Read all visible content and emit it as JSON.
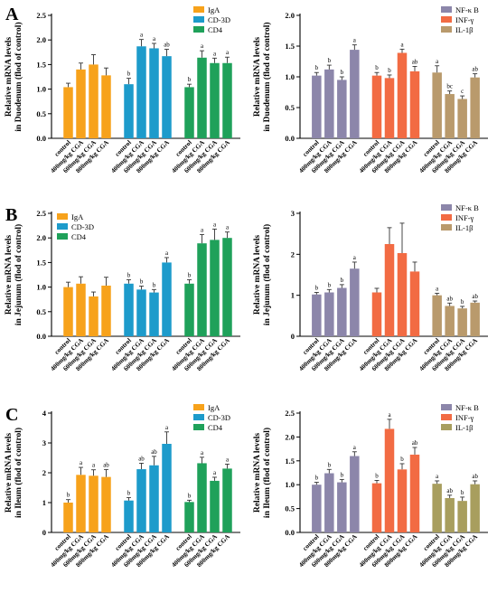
{
  "chart_data": [
    {
      "id": "A-left",
      "panel": "A",
      "type": "bar",
      "ylabel": [
        "Relative mRNA levels",
        "in Duodenum (flod of control)"
      ],
      "ylim": [
        0,
        2.5
      ],
      "yticks": [
        0,
        0.5,
        1.0,
        1.5,
        2.0,
        2.5
      ],
      "ytick_labels": [
        "0.0",
        "0.5",
        "1.0",
        "1.5",
        "2.0",
        "2.5"
      ],
      "legend": "top-right",
      "categories": [
        "control",
        "400mg/kg CGA",
        "600mg/kg CGA",
        "800mg/kg CGA"
      ],
      "series": [
        {
          "name": "IgA",
          "color": "#F7A21B",
          "values": [
            1.04,
            1.4,
            1.5,
            1.28
          ],
          "errors": [
            0.08,
            0.13,
            0.2,
            0.15
          ],
          "sig": [
            "",
            "",
            "",
            ""
          ]
        },
        {
          "name": "CD-3D",
          "color": "#1D9BCB",
          "values": [
            1.1,
            1.87,
            1.83,
            1.67
          ],
          "errors": [
            0.12,
            0.14,
            0.1,
            0.14
          ],
          "sig": [
            "b",
            "a",
            "a",
            "ab"
          ]
        },
        {
          "name": "CD4",
          "color": "#1FA15A",
          "values": [
            1.04,
            1.64,
            1.53,
            1.53
          ],
          "errors": [
            0.06,
            0.14,
            0.1,
            0.12
          ],
          "sig": [
            "b",
            "a",
            "a",
            "a"
          ]
        }
      ]
    },
    {
      "id": "A-right",
      "panel": "A",
      "type": "bar",
      "ylabel": [
        "Relative mRNA levels",
        "in Duodenum (flod of control)"
      ],
      "ylim": [
        0,
        2.0
      ],
      "yticks": [
        0,
        0.5,
        1.0,
        1.5,
        2.0
      ],
      "ytick_labels": [
        "0.0",
        "0.5",
        "1.0",
        "1.5",
        "2.0"
      ],
      "legend": "top-right",
      "categories": [
        "control",
        "400mg/kg CGA",
        "600mg/kg CGA",
        "800mg/kg CGA"
      ],
      "series": [
        {
          "name": "NF-κ B",
          "color": "#8C86AA",
          "values": [
            1.02,
            1.12,
            0.95,
            1.44
          ],
          "errors": [
            0.05,
            0.07,
            0.05,
            0.08
          ],
          "sig": [
            "b",
            "b",
            "b",
            "a"
          ]
        },
        {
          "name": "INF-γ",
          "color": "#F26B43",
          "values": [
            1.02,
            0.98,
            1.39,
            1.09
          ],
          "errors": [
            0.05,
            0.05,
            0.06,
            0.08
          ],
          "sig": [
            "b",
            "b",
            "a",
            "ab"
          ]
        },
        {
          "name": "IL-1β",
          "color": "#B99A6C",
          "values": [
            1.07,
            0.72,
            0.64,
            0.99
          ],
          "errors": [
            0.11,
            0.05,
            0.05,
            0.06
          ],
          "sig": [
            "a",
            "bc",
            "c",
            "ab"
          ]
        }
      ]
    },
    {
      "id": "B-left",
      "panel": "B",
      "type": "bar",
      "ylabel": [
        "Relative mRNA levels",
        "in Jejunum (flod of control)"
      ],
      "ylim": [
        0,
        2.5
      ],
      "yticks": [
        0,
        0.5,
        1.0,
        1.5,
        2.0,
        2.5
      ],
      "ytick_labels": [
        "0.0",
        "0.5",
        "1.0",
        "1.5",
        "2.0",
        "2.5"
      ],
      "legend": "top-left",
      "categories": [
        "control",
        "400mg/kg CGA",
        "600mg/kg CGA",
        "800mg/kg CGA"
      ],
      "series": [
        {
          "name": "IgA",
          "color": "#F7A21B",
          "values": [
            1.0,
            1.07,
            0.81,
            1.03
          ],
          "errors": [
            0.1,
            0.14,
            0.09,
            0.17
          ],
          "sig": [
            "",
            "",
            "",
            ""
          ]
        },
        {
          "name": "CD-3D",
          "color": "#1D9BCB",
          "values": [
            1.07,
            0.95,
            0.89,
            1.5
          ],
          "errors": [
            0.08,
            0.07,
            0.06,
            0.1
          ],
          "sig": [
            "b",
            "b",
            "b",
            "a"
          ]
        },
        {
          "name": "CD4",
          "color": "#1FA15A",
          "values": [
            1.07,
            1.89,
            1.96,
            2.0
          ],
          "errors": [
            0.08,
            0.18,
            0.22,
            0.12
          ],
          "sig": [
            "b",
            "a",
            "a",
            "a"
          ]
        }
      ]
    },
    {
      "id": "B-right",
      "panel": "B",
      "type": "bar",
      "ylabel": [
        "Relative mRNA levels",
        "in Jejunum (flod of control)"
      ],
      "ylim": [
        0,
        3
      ],
      "yticks": [
        0,
        1,
        2,
        3
      ],
      "ytick_labels": [
        "0",
        "1",
        "2",
        "3"
      ],
      "legend": "top-right",
      "categories": [
        "control",
        "400mg/kg CGA",
        "600mg/kg CGA",
        "800mg/kg CGA"
      ],
      "series": [
        {
          "name": "NF-κ B",
          "color": "#8C86AA",
          "values": [
            1.02,
            1.07,
            1.18,
            1.65
          ],
          "errors": [
            0.05,
            0.07,
            0.08,
            0.16
          ],
          "sig": [
            "b",
            "b",
            "b",
            "a"
          ]
        },
        {
          "name": "INF-γ",
          "color": "#F26B43",
          "values": [
            1.07,
            2.25,
            2.03,
            1.58
          ],
          "errors": [
            0.1,
            0.4,
            0.73,
            0.23
          ],
          "sig": [
            "",
            "",
            "",
            ""
          ]
        },
        {
          "name": "IL-1β",
          "color": "#B99A6C",
          "values": [
            1.0,
            0.74,
            0.68,
            0.82
          ],
          "errors": [
            0.05,
            0.07,
            0.05,
            0.04
          ],
          "sig": [
            "a",
            "ab",
            "b",
            "ab"
          ]
        }
      ]
    },
    {
      "id": "C-left",
      "panel": "C",
      "type": "bar",
      "ylabel": [
        "Relative mRNA levels",
        "in Ileum (flod of control)"
      ],
      "ylim": [
        0,
        4
      ],
      "yticks": [
        0,
        1,
        2,
        3,
        4
      ],
      "ytick_labels": [
        "0",
        "1",
        "2",
        "3",
        "4"
      ],
      "legend": "top-right",
      "categories": [
        "control",
        "400mg/kg CGA",
        "600mg/kg CGA",
        "800mg/kg CGA"
      ],
      "series": [
        {
          "name": "IgA",
          "color": "#F7A21B",
          "values": [
            1.0,
            1.93,
            1.9,
            1.86
          ],
          "errors": [
            0.1,
            0.25,
            0.2,
            0.25
          ],
          "sig": [
            "b",
            "a",
            "a",
            "ab"
          ]
        },
        {
          "name": "CD-3D",
          "color": "#1D9BCB",
          "values": [
            1.07,
            2.12,
            2.25,
            2.97
          ],
          "errors": [
            0.1,
            0.2,
            0.3,
            0.4
          ],
          "sig": [
            "b",
            "ab",
            "ab",
            "a"
          ]
        },
        {
          "name": "CD4",
          "color": "#1FA15A",
          "values": [
            1.02,
            2.32,
            1.73,
            2.14
          ],
          "errors": [
            0.06,
            0.2,
            0.12,
            0.15
          ],
          "sig": [
            "b",
            "a",
            "a",
            "a"
          ]
        }
      ]
    },
    {
      "id": "C-right",
      "panel": "C",
      "type": "bar",
      "ylabel": [
        "Relative mRNA levels",
        "in Ileum (flod of control)"
      ],
      "ylim": [
        0,
        2.5
      ],
      "yticks": [
        0,
        0.5,
        1.0,
        1.5,
        2.0,
        2.5
      ],
      "ytick_labels": [
        "0.0",
        "0.5",
        "1.0",
        "1.5",
        "2.0",
        "2.5"
      ],
      "legend": "top-right",
      "categories": [
        "control",
        "400mg/kg CGA",
        "600mg/kg CGA",
        "800mg/kg CGA"
      ],
      "series": [
        {
          "name": "NF-κ B",
          "color": "#8C86AA",
          "values": [
            1.0,
            1.24,
            1.05,
            1.6
          ],
          "errors": [
            0.05,
            0.08,
            0.06,
            0.09
          ],
          "sig": [
            "b",
            "b",
            "b",
            "a"
          ]
        },
        {
          "name": "INF-γ",
          "color": "#F26B43",
          "values": [
            1.03,
            2.17,
            1.32,
            1.63
          ],
          "errors": [
            0.06,
            0.2,
            0.12,
            0.15
          ],
          "sig": [
            "b",
            "a",
            "b",
            "ab"
          ]
        },
        {
          "name": "IL-1β",
          "color": "#A89E5E",
          "values": [
            1.02,
            0.72,
            0.66,
            1.01
          ],
          "errors": [
            0.06,
            0.06,
            0.08,
            0.07
          ],
          "sig": [
            "a",
            "ab",
            "b",
            "ab"
          ]
        }
      ]
    }
  ]
}
